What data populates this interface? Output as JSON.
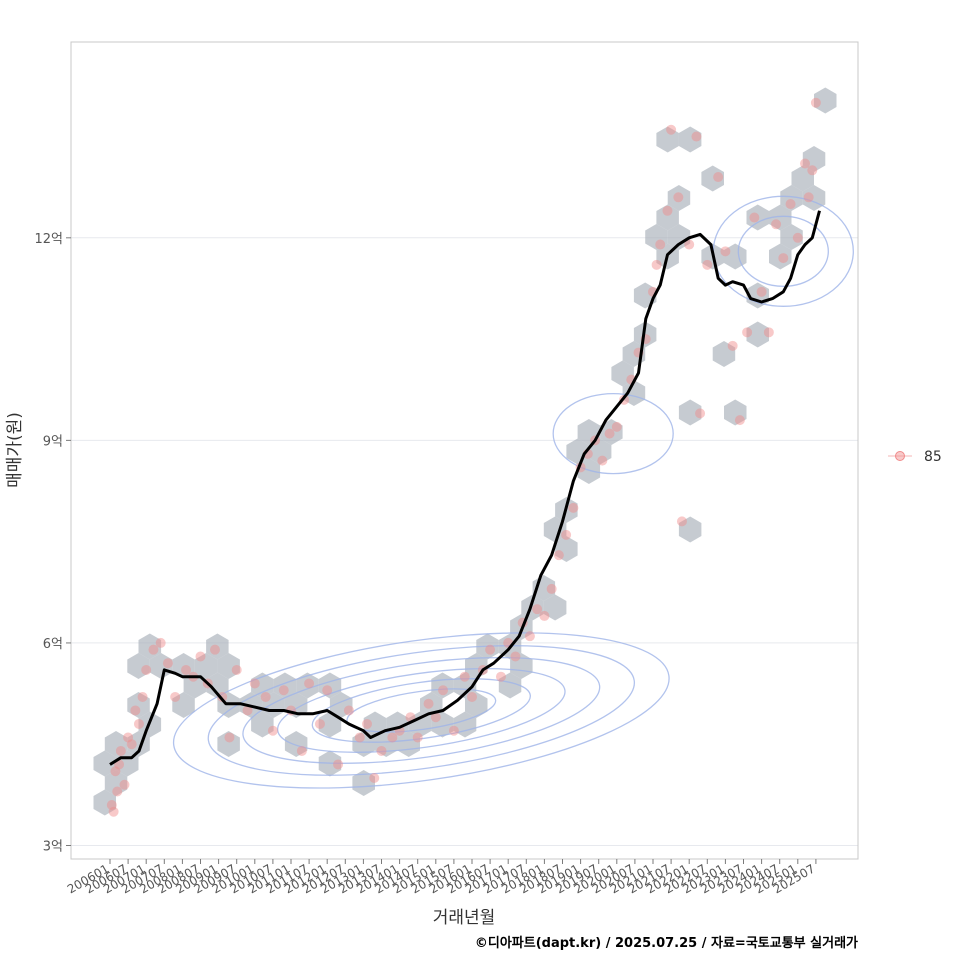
{
  "chart_data": {
    "type": "scatter",
    "title": "",
    "xlabel": "거래년월",
    "ylabel": "매매가(원)",
    "caption": "©디아파트(dapt.kr) / 2025.07.25 / 자료=국토교통부 실거래가",
    "y_unit": "억",
    "ylim": [
      2.8,
      14.9
    ],
    "y_ticks": [
      3,
      6,
      9,
      12
    ],
    "y_tick_labels": [
      "3억",
      "6억",
      "9억",
      "12억"
    ],
    "x_tick_labels": [
      "200601",
      "200607",
      "200701",
      "200707",
      "200801",
      "200807",
      "200901",
      "200907",
      "201001",
      "201007",
      "201101",
      "201107",
      "201201",
      "201207",
      "201301",
      "201307",
      "201401",
      "201407",
      "201501",
      "201507",
      "201601",
      "201607",
      "201701",
      "201707",
      "201801",
      "201807",
      "201901",
      "201907",
      "202001",
      "202007",
      "202101",
      "202107",
      "202201",
      "202207",
      "202301",
      "202307",
      "202401",
      "202407",
      "202501",
      "202507"
    ],
    "legend": {
      "position": "right",
      "entries": [
        "85"
      ]
    },
    "grid": true,
    "colors": {
      "points": "#f08a8a",
      "hexbins": "#a7afb8",
      "contours": "#9fb4e8",
      "trend": "#000000"
    },
    "series": [
      {
        "name": "85",
        "kind": "transactions",
        "points": [
          [
            2006.05,
            3.6
          ],
          [
            2006.1,
            3.5
          ],
          [
            2006.15,
            4.1
          ],
          [
            2006.2,
            3.8
          ],
          [
            2006.25,
            4.2
          ],
          [
            2006.3,
            4.4
          ],
          [
            2006.4,
            3.9
          ],
          [
            2006.5,
            4.6
          ],
          [
            2006.6,
            4.5
          ],
          [
            2006.7,
            5.0
          ],
          [
            2006.8,
            4.8
          ],
          [
            2006.9,
            5.2
          ],
          [
            2007.0,
            5.6
          ],
          [
            2007.2,
            5.9
          ],
          [
            2007.4,
            6.0
          ],
          [
            2007.6,
            5.7
          ],
          [
            2007.8,
            5.2
          ],
          [
            2008.1,
            5.6
          ],
          [
            2008.3,
            5.5
          ],
          [
            2008.5,
            5.8
          ],
          [
            2008.7,
            5.4
          ],
          [
            2008.9,
            5.9
          ],
          [
            2009.1,
            5.2
          ],
          [
            2009.3,
            4.6
          ],
          [
            2009.5,
            5.6
          ],
          [
            2009.8,
            5.0
          ],
          [
            2010.0,
            5.4
          ],
          [
            2010.3,
            5.2
          ],
          [
            2010.5,
            4.7
          ],
          [
            2010.8,
            5.3
          ],
          [
            2011.0,
            5.0
          ],
          [
            2011.3,
            4.4
          ],
          [
            2011.5,
            5.4
          ],
          [
            2011.8,
            4.8
          ],
          [
            2012.0,
            5.3
          ],
          [
            2012.3,
            4.2
          ],
          [
            2012.6,
            5.0
          ],
          [
            2012.9,
            4.6
          ],
          [
            2013.1,
            4.8
          ],
          [
            2013.3,
            4.0
          ],
          [
            2013.5,
            4.4
          ],
          [
            2013.8,
            4.6
          ],
          [
            2014.0,
            4.7
          ],
          [
            2014.3,
            4.9
          ],
          [
            2014.5,
            4.6
          ],
          [
            2014.8,
            5.1
          ],
          [
            2015.0,
            4.9
          ],
          [
            2015.2,
            5.3
          ],
          [
            2015.5,
            4.7
          ],
          [
            2015.8,
            5.5
          ],
          [
            2016.0,
            5.2
          ],
          [
            2016.3,
            5.6
          ],
          [
            2016.5,
            5.9
          ],
          [
            2016.8,
            5.5
          ],
          [
            2017.0,
            6.0
          ],
          [
            2017.2,
            5.8
          ],
          [
            2017.4,
            6.3
          ],
          [
            2017.6,
            6.1
          ],
          [
            2017.8,
            6.5
          ],
          [
            2018.0,
            6.4
          ],
          [
            2018.2,
            6.8
          ],
          [
            2018.4,
            7.3
          ],
          [
            2018.6,
            7.6
          ],
          [
            2018.8,
            8.0
          ],
          [
            2019.0,
            8.6
          ],
          [
            2019.2,
            8.8
          ],
          [
            2019.4,
            9.0
          ],
          [
            2019.6,
            8.7
          ],
          [
            2019.8,
            9.1
          ],
          [
            2020.0,
            9.2
          ],
          [
            2020.2,
            9.6
          ],
          [
            2020.4,
            9.9
          ],
          [
            2020.6,
            10.3
          ],
          [
            2020.8,
            10.5
          ],
          [
            2021.0,
            11.2
          ],
          [
            2021.1,
            11.6
          ],
          [
            2021.2,
            11.9
          ],
          [
            2021.4,
            12.4
          ],
          [
            2021.5,
            13.6
          ],
          [
            2021.7,
            12.6
          ],
          [
            2021.8,
            7.8
          ],
          [
            2022.0,
            11.9
          ],
          [
            2022.2,
            13.5
          ],
          [
            2022.3,
            9.4
          ],
          [
            2022.5,
            11.6
          ],
          [
            2022.8,
            12.9
          ],
          [
            2023.0,
            11.8
          ],
          [
            2023.2,
            10.4
          ],
          [
            2023.4,
            9.3
          ],
          [
            2023.6,
            10.6
          ],
          [
            2023.8,
            12.3
          ],
          [
            2024.0,
            11.2
          ],
          [
            2024.2,
            10.6
          ],
          [
            2024.4,
            12.2
          ],
          [
            2024.6,
            11.7
          ],
          [
            2024.8,
            12.5
          ],
          [
            2025.0,
            12.0
          ],
          [
            2025.2,
            13.1
          ],
          [
            2025.3,
            12.6
          ],
          [
            2025.4,
            13.0
          ],
          [
            2025.5,
            14.0
          ]
        ]
      },
      {
        "name": "",
        "kind": "trend",
        "points": [
          [
            2006.0,
            4.2
          ],
          [
            2006.3,
            4.3
          ],
          [
            2006.6,
            4.3
          ],
          [
            2006.8,
            4.4
          ],
          [
            2007.0,
            4.7
          ],
          [
            2007.3,
            5.1
          ],
          [
            2007.5,
            5.6
          ],
          [
            2007.8,
            5.55
          ],
          [
            2008.0,
            5.5
          ],
          [
            2008.5,
            5.5
          ],
          [
            2008.8,
            5.35
          ],
          [
            2009.2,
            5.1
          ],
          [
            2009.6,
            5.1
          ],
          [
            2010.0,
            5.05
          ],
          [
            2010.4,
            5.0
          ],
          [
            2010.8,
            5.0
          ],
          [
            2011.2,
            4.95
          ],
          [
            2011.6,
            4.95
          ],
          [
            2012.0,
            5.0
          ],
          [
            2012.3,
            4.9
          ],
          [
            2012.6,
            4.8
          ],
          [
            2013.0,
            4.7
          ],
          [
            2013.2,
            4.6
          ],
          [
            2013.6,
            4.7
          ],
          [
            2014.0,
            4.75
          ],
          [
            2014.4,
            4.85
          ],
          [
            2014.8,
            4.95
          ],
          [
            2015.2,
            5.0
          ],
          [
            2015.6,
            5.15
          ],
          [
            2016.0,
            5.35
          ],
          [
            2016.3,
            5.6
          ],
          [
            2016.6,
            5.7
          ],
          [
            2017.0,
            5.9
          ],
          [
            2017.3,
            6.1
          ],
          [
            2017.6,
            6.5
          ],
          [
            2017.9,
            7.0
          ],
          [
            2018.2,
            7.3
          ],
          [
            2018.5,
            7.8
          ],
          [
            2018.8,
            8.4
          ],
          [
            2019.1,
            8.8
          ],
          [
            2019.4,
            9.0
          ],
          [
            2019.7,
            9.3
          ],
          [
            2020.0,
            9.5
          ],
          [
            2020.3,
            9.7
          ],
          [
            2020.6,
            10.0
          ],
          [
            2020.8,
            10.8
          ],
          [
            2021.0,
            11.1
          ],
          [
            2021.2,
            11.3
          ],
          [
            2021.4,
            11.75
          ],
          [
            2021.7,
            11.9
          ],
          [
            2022.0,
            12.0
          ],
          [
            2022.3,
            12.05
          ],
          [
            2022.6,
            11.9
          ],
          [
            2022.8,
            11.4
          ],
          [
            2023.0,
            11.3
          ],
          [
            2023.2,
            11.35
          ],
          [
            2023.5,
            11.3
          ],
          [
            2023.7,
            11.1
          ],
          [
            2024.0,
            11.05
          ],
          [
            2024.3,
            11.1
          ],
          [
            2024.6,
            11.2
          ],
          [
            2024.8,
            11.4
          ],
          [
            2025.0,
            11.75
          ],
          [
            2025.2,
            11.9
          ],
          [
            2025.4,
            12.0
          ],
          [
            2025.6,
            12.4
          ]
        ]
      }
    ]
  }
}
